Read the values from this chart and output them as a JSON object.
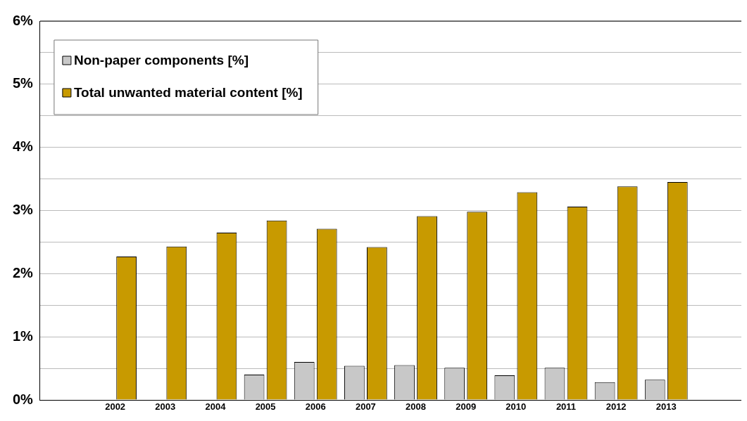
{
  "chart_data": {
    "type": "bar",
    "categories": [
      null,
      "2002",
      "2003",
      "2004",
      "2005",
      "2006",
      "2007",
      "2008",
      "2009",
      "2010",
      "2011",
      "2012",
      "2013",
      null
    ],
    "series": [
      {
        "name": "Non-paper components [%]",
        "color": "#c8c8c8",
        "values": [
          null,
          null,
          null,
          null,
          0.4,
          0.6,
          0.54,
          0.55,
          0.51,
          0.39,
          0.51,
          0.28,
          0.32,
          null
        ]
      },
      {
        "name": "Total unwanted material content [%]",
        "color": "#c89a00",
        "values": [
          null,
          2.27,
          2.43,
          2.65,
          2.84,
          2.71,
          2.42,
          2.91,
          2.98,
          3.29,
          3.06,
          3.38,
          3.45,
          null
        ]
      }
    ],
    "ylim": [
      0,
      6
    ],
    "yticks": [
      {
        "value": 0,
        "label": "0%"
      },
      {
        "value": 0.5,
        "label": null
      },
      {
        "value": 1,
        "label": "1%"
      },
      {
        "value": 1.5,
        "label": null
      },
      {
        "value": 2,
        "label": "2%"
      },
      {
        "value": 2.5,
        "label": null
      },
      {
        "value": 3,
        "label": "3%"
      },
      {
        "value": 3.5,
        "label": null
      },
      {
        "value": 4,
        "label": "4%"
      },
      {
        "value": 4.5,
        "label": null
      },
      {
        "value": 5,
        "label": "5%"
      },
      {
        "value": 5.5,
        "label": null
      },
      {
        "value": 6,
        "label": "6%"
      }
    ],
    "grid": "y",
    "legend": "top left"
  }
}
